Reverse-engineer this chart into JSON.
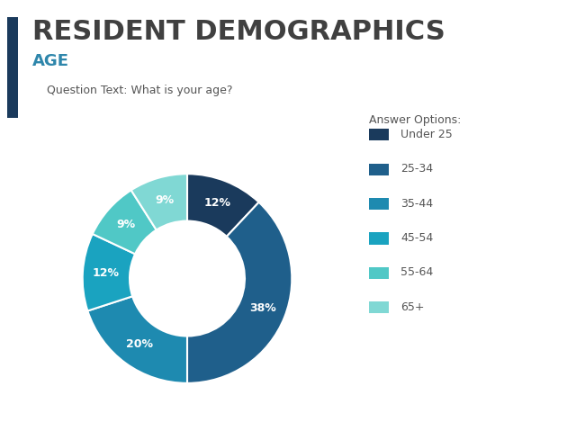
{
  "title": "RESIDENT DEMOGRAPHICS",
  "subtitle": "AGE",
  "question_text": "Question Text: What is your age?",
  "answer_options_label": "Answer Options:",
  "categories": [
    "Under 25",
    "25-34",
    "35-44",
    "45-54",
    "55-64",
    "65+"
  ],
  "values": [
    12,
    38,
    20,
    12,
    9,
    9
  ],
  "colors": [
    "#1a3a5c",
    "#1f5f8b",
    "#1e8ab0",
    "#1aa3c0",
    "#50c8c6",
    "#80d8d4"
  ],
  "pct_labels": [
    "12%",
    "38%",
    "20%",
    "12%",
    "9%",
    "9%"
  ],
  "title_color": "#404040",
  "subtitle_color": "#2e86ab",
  "question_color": "#555555",
  "legend_label_color": "#555555",
  "accent_bar_color": "#1a3a5c",
  "background_color": "#ffffff"
}
